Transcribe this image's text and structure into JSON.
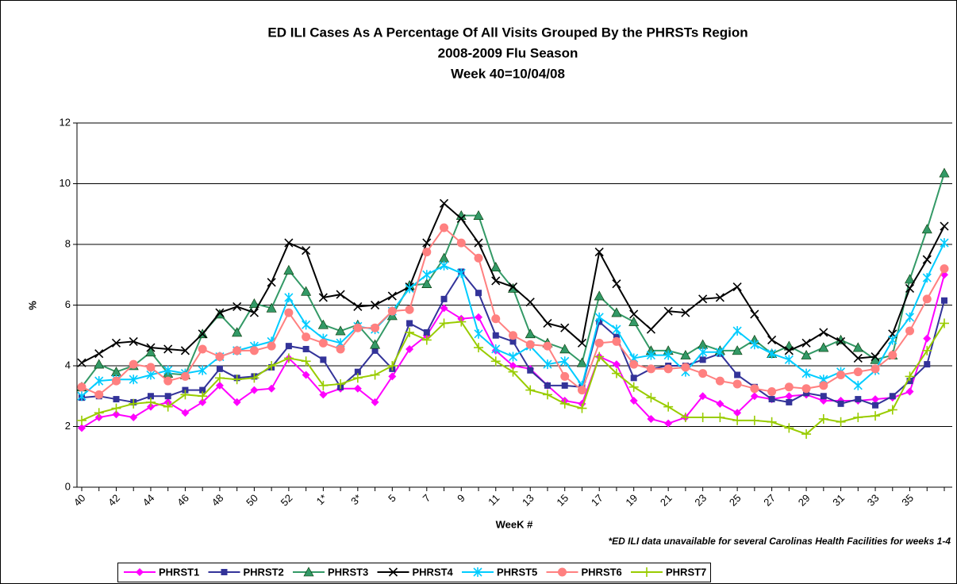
{
  "chart_data": {
    "type": "line",
    "title": [
      "ED ILI Cases As A Percentage Of All Visits Grouped By the  PHRSTs Region",
      "2008-2009 Flu Season",
      "Week 40=10/04/08"
    ],
    "xlabel": "WeeK #",
    "ylabel": "%",
    "note": "*ED ILI data unavailable for several Carolinas Health Facilities for weeks 1-4",
    "categories": [
      "40",
      null,
      "42",
      null,
      "44",
      null,
      "46",
      null,
      "48",
      null,
      "50",
      null,
      "52",
      null,
      "1*",
      null,
      "3*",
      null,
      "5",
      null,
      "7",
      null,
      "9",
      null,
      "11",
      null,
      "13",
      null,
      "15",
      null,
      "17",
      null,
      "19",
      null,
      "21",
      null,
      "23",
      null,
      "25",
      null,
      "27",
      null,
      "29",
      null,
      "31",
      null,
      "33",
      null,
      "35",
      null,
      null
    ],
    "ylim": [
      0,
      12
    ],
    "yticks": [
      0,
      2,
      4,
      6,
      8,
      10,
      12
    ],
    "grid": true,
    "legend": "bottom",
    "series": [
      {
        "name": "PHRST1",
        "color": "#ff00ff",
        "marker": "diamond",
        "values": [
          1.95,
          2.3,
          2.4,
          2.3,
          2.65,
          2.8,
          2.45,
          2.8,
          3.35,
          2.8,
          3.2,
          3.25,
          4.25,
          3.7,
          3.05,
          3.25,
          3.25,
          2.8,
          3.65,
          4.55,
          5.0,
          5.9,
          5.55,
          5.6,
          4.5,
          4.0,
          3.9,
          3.35,
          2.85,
          2.75,
          4.3,
          4.05,
          2.85,
          2.25,
          2.1,
          2.3,
          3.0,
          2.75,
          2.45,
          3.0,
          2.9,
          3.0,
          3.05,
          2.85,
          2.85,
          2.85,
          2.9,
          2.95,
          3.15,
          4.9,
          7.0
        ]
      },
      {
        "name": "PHRST2",
        "color": "#333399",
        "marker": "square",
        "values": [
          2.95,
          3.0,
          2.9,
          2.8,
          3.0,
          3.0,
          3.2,
          3.2,
          3.9,
          3.6,
          3.65,
          3.95,
          4.65,
          4.55,
          4.2,
          3.3,
          3.8,
          4.5,
          3.9,
          5.4,
          5.1,
          6.2,
          7.1,
          6.4,
          5.0,
          4.8,
          3.85,
          3.35,
          3.35,
          3.3,
          5.45,
          4.95,
          3.6,
          3.9,
          4.0,
          4.0,
          4.2,
          4.4,
          3.7,
          3.3,
          2.9,
          2.8,
          3.1,
          3.0,
          2.75,
          2.9,
          2.7,
          3.0,
          3.5,
          4.05,
          6.15
        ]
      },
      {
        "name": "PHRST3",
        "color": "#339966",
        "marker": "triangle",
        "values": [
          3.3,
          4.05,
          3.8,
          4.0,
          4.45,
          3.75,
          3.7,
          5.05,
          5.7,
          5.1,
          6.05,
          5.9,
          7.15,
          6.45,
          5.35,
          5.15,
          5.35,
          4.7,
          5.65,
          6.65,
          6.7,
          7.55,
          8.95,
          8.95,
          7.25,
          6.55,
          5.05,
          4.75,
          4.55,
          4.1,
          6.3,
          5.75,
          5.45,
          4.5,
          4.5,
          4.35,
          4.7,
          4.5,
          4.5,
          4.85,
          4.4,
          4.65,
          4.35,
          4.6,
          4.85,
          4.6,
          4.2,
          4.35,
          6.85,
          8.5,
          10.35
        ]
      },
      {
        "name": "PHRST4",
        "color": "#000000",
        "marker": "x",
        "values": [
          4.1,
          4.4,
          4.75,
          4.8,
          4.6,
          4.55,
          4.5,
          5.05,
          5.75,
          5.95,
          5.75,
          6.75,
          8.05,
          7.8,
          6.25,
          6.35,
          5.95,
          6.0,
          6.3,
          6.6,
          8.05,
          9.35,
          8.85,
          8.05,
          6.8,
          6.6,
          6.1,
          5.4,
          5.25,
          4.75,
          7.75,
          6.7,
          5.7,
          5.2,
          5.8,
          5.75,
          6.2,
          6.25,
          6.6,
          5.7,
          4.85,
          4.5,
          4.75,
          5.1,
          4.8,
          4.25,
          4.3,
          5.05,
          6.55,
          7.5,
          8.6
        ]
      },
      {
        "name": "PHRST5",
        "color": "#00ccff",
        "marker": "asterisk",
        "values": [
          3.0,
          3.5,
          3.55,
          3.55,
          3.7,
          3.85,
          3.75,
          3.85,
          4.3,
          4.5,
          4.65,
          4.8,
          6.25,
          5.35,
          4.9,
          4.75,
          5.3,
          5.2,
          5.8,
          6.55,
          7.0,
          7.3,
          7.05,
          5.05,
          4.55,
          4.3,
          4.65,
          4.05,
          4.15,
          3.35,
          5.6,
          5.2,
          4.25,
          4.35,
          4.35,
          3.8,
          4.45,
          4.45,
          5.15,
          4.7,
          4.4,
          4.2,
          3.75,
          3.55,
          3.8,
          3.35,
          3.85,
          4.85,
          5.6,
          6.9,
          8.05
        ]
      },
      {
        "name": "PHRST6",
        "color": "#ff8080",
        "marker": "circle",
        "values": [
          3.3,
          3.05,
          3.5,
          4.05,
          3.95,
          3.5,
          3.65,
          4.55,
          4.3,
          4.5,
          4.5,
          4.65,
          5.75,
          4.95,
          4.75,
          4.55,
          5.25,
          5.25,
          5.8,
          5.85,
          7.75,
          8.55,
          8.05,
          7.55,
          5.55,
          5.0,
          4.7,
          4.65,
          3.65,
          3.2,
          4.75,
          4.8,
          4.05,
          3.9,
          3.9,
          3.95,
          3.75,
          3.5,
          3.4,
          3.25,
          3.15,
          3.3,
          3.25,
          3.35,
          3.7,
          3.8,
          3.9,
          4.35,
          5.15,
          6.2,
          7.2
        ]
      },
      {
        "name": "PHRST7",
        "color": "#99cc00",
        "marker": "plus",
        "values": [
          2.2,
          2.45,
          2.6,
          2.75,
          2.8,
          2.65,
          3.05,
          3.0,
          3.6,
          3.55,
          3.6,
          4.0,
          4.25,
          4.15,
          3.35,
          3.4,
          3.6,
          3.7,
          4.0,
          5.1,
          4.85,
          5.4,
          5.45,
          4.6,
          4.15,
          3.8,
          3.2,
          3.05,
          2.75,
          2.6,
          4.3,
          3.75,
          3.3,
          2.95,
          2.65,
          2.3,
          2.3,
          2.3,
          2.2,
          2.2,
          2.15,
          1.95,
          1.75,
          2.25,
          2.15,
          2.3,
          2.35,
          2.55,
          3.65,
          4.5,
          5.4
        ]
      }
    ]
  }
}
